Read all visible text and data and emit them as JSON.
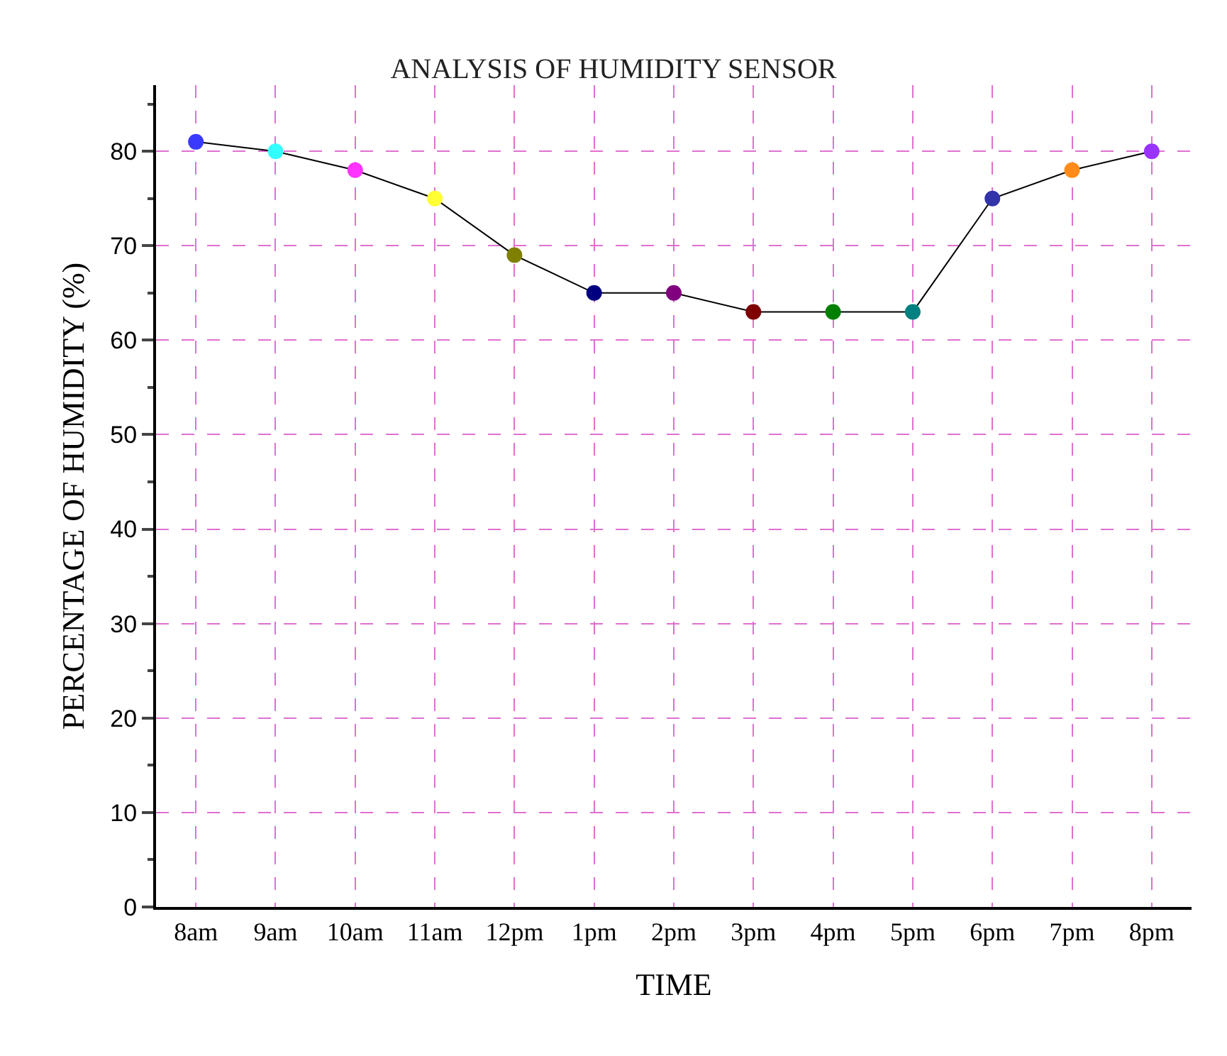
{
  "chart_data": {
    "type": "line",
    "title": "ANALYSIS OF HUMIDITY SENSOR",
    "xlabel": "TIME",
    "ylabel": "PERCENTAGE OF HUMIDITY (%)",
    "categories": [
      "8am",
      "9am",
      "10am",
      "11am",
      "12pm",
      "1pm",
      "2pm",
      "3pm",
      "4pm",
      "5pm",
      "6pm",
      "7pm",
      "8pm"
    ],
    "series": [
      {
        "color": "#000000",
        "values": [
          81,
          80,
          78,
          75,
          69,
          65,
          65,
          63,
          63,
          63,
          75,
          78,
          80
        ],
        "colors": [
          "#3a3aff",
          "#33ffff",
          "#ff33ff",
          "#ffff33",
          "#808000",
          "#000080",
          "#800080",
          "#800000",
          "#008000",
          "#008080",
          "#3333aa",
          "#ff8c1a",
          "#9933ff"
        ]
      }
    ],
    "ylim": [
      0,
      87
    ],
    "yticks": [
      0,
      10,
      20,
      30,
      40,
      50,
      60,
      70,
      80
    ],
    "grid": true,
    "legend": false,
    "marker": "circle",
    "line_style": "solid"
  }
}
